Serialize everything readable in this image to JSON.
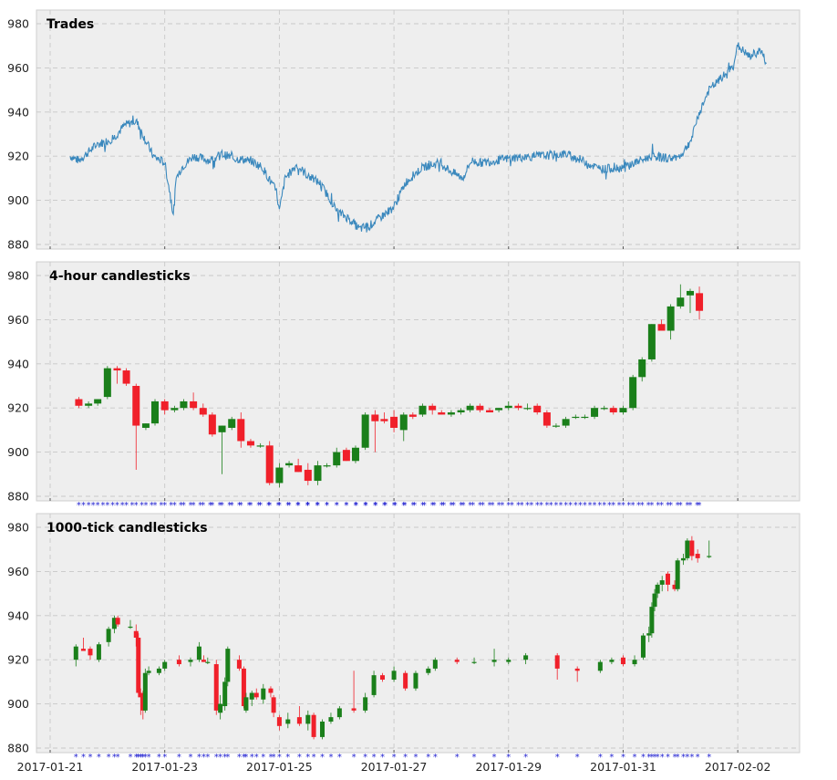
{
  "colors": {
    "trade_line": "#3a88bd",
    "up": "#1a7f1a",
    "down": "#f0202a",
    "marker": "#1f1fd0",
    "grid": "#c8c8c8",
    "panel_bg": "#eeeeee"
  },
  "x_axis": {
    "tick_labels": [
      "2017-01-21",
      "2017-01-23",
      "2017-01-25",
      "2017-01-27",
      "2017-01-29",
      "2017-01-31",
      "2017-02-02"
    ]
  },
  "chart_data": [
    {
      "type": "line",
      "title": "Trades",
      "ylim": [
        880,
        980
      ],
      "yticks": [
        "880",
        "900",
        "920",
        "940",
        "960",
        "980"
      ],
      "x_range_days": [
        0.0,
        13.0
      ],
      "x": [
        0.35,
        0.5,
        0.8,
        1.1,
        1.3,
        1.5,
        1.8,
        2.0,
        2.08,
        2.15,
        2.2,
        2.3,
        2.5,
        2.8,
        3.0,
        3.2,
        3.5,
        3.7,
        3.95,
        4.0,
        4.1,
        4.3,
        4.5,
        4.7,
        4.9,
        5.0,
        5.2,
        5.4,
        5.6,
        5.8,
        6.0,
        6.2,
        6.5,
        6.8,
        7.0,
        7.2,
        7.35,
        7.5,
        7.8,
        8.0,
        8.5,
        9.0,
        9.3,
        9.6,
        10.0,
        10.3,
        10.5,
        10.8,
        11.0,
        11.2,
        11.3,
        11.5,
        11.7,
        11.9,
        12.0,
        12.2,
        12.4,
        12.5
      ],
      "y": [
        920,
        918,
        925,
        928,
        934,
        936,
        920,
        917,
        905,
        893,
        910,
        915,
        920,
        918,
        921,
        919,
        918,
        915,
        904,
        895,
        910,
        916,
        911,
        908,
        900,
        895,
        892,
        887,
        889,
        893,
        897,
        908,
        915,
        917,
        913,
        910,
        918,
        917,
        918,
        919,
        920,
        921,
        918,
        914,
        915,
        918,
        920,
        919,
        920,
        928,
        938,
        950,
        955,
        960,
        970,
        965,
        968,
        962
      ]
    },
    {
      "type": "candlestick",
      "title": "4-hour candlesticks",
      "ylim": [
        880,
        980
      ],
      "yticks": [
        "880",
        "900",
        "920",
        "940",
        "960",
        "980"
      ],
      "candles": [
        {
          "t": 0.5,
          "o": 924,
          "h": 925,
          "l": 920,
          "c": 921
        },
        {
          "t": 0.67,
          "o": 921,
          "h": 923,
          "l": 920,
          "c": 922
        },
        {
          "t": 0.83,
          "o": 922,
          "h": 924,
          "l": 921,
          "c": 924
        },
        {
          "t": 1.0,
          "o": 925,
          "h": 939,
          "l": 924,
          "c": 938
        },
        {
          "t": 1.17,
          "o": 938,
          "h": 939,
          "l": 931,
          "c": 937
        },
        {
          "t": 1.33,
          "o": 937,
          "h": 938,
          "l": 930,
          "c": 931
        },
        {
          "t": 1.5,
          "o": 930,
          "h": 931,
          "l": 892,
          "c": 912
        },
        {
          "t": 1.67,
          "o": 911,
          "h": 913,
          "l": 910,
          "c": 913
        },
        {
          "t": 1.83,
          "o": 913,
          "h": 924,
          "l": 912,
          "c": 923
        },
        {
          "t": 2.0,
          "o": 923,
          "h": 924,
          "l": 917,
          "c": 919
        },
        {
          "t": 2.17,
          "o": 919,
          "h": 921,
          "l": 918,
          "c": 920
        },
        {
          "t": 2.33,
          "o": 920,
          "h": 924,
          "l": 919,
          "c": 923
        },
        {
          "t": 2.5,
          "o": 923,
          "h": 927,
          "l": 919,
          "c": 920
        },
        {
          "t": 2.67,
          "o": 920,
          "h": 922,
          "l": 916,
          "c": 917
        },
        {
          "t": 2.83,
          "o": 917,
          "h": 918,
          "l": 907,
          "c": 908
        },
        {
          "t": 3.0,
          "o": 909,
          "h": 912,
          "l": 890,
          "c": 912
        },
        {
          "t": 3.17,
          "o": 911,
          "h": 916,
          "l": 910,
          "c": 915
        },
        {
          "t": 3.33,
          "o": 915,
          "h": 918,
          "l": 902,
          "c": 905
        },
        {
          "t": 3.5,
          "o": 905,
          "h": 906,
          "l": 902,
          "c": 903
        },
        {
          "t": 3.67,
          "o": 903,
          "h": 904,
          "l": 902,
          "c": 903
        },
        {
          "t": 3.83,
          "o": 903,
          "h": 905,
          "l": 885,
          "c": 886
        },
        {
          "t": 4.0,
          "o": 886,
          "h": 895,
          "l": 884,
          "c": 893
        },
        {
          "t": 4.17,
          "o": 894,
          "h": 896,
          "l": 893,
          "c": 895
        },
        {
          "t": 4.33,
          "o": 894,
          "h": 897,
          "l": 891,
          "c": 891
        },
        {
          "t": 4.5,
          "o": 892,
          "h": 895,
          "l": 885,
          "c": 887
        },
        {
          "t": 4.67,
          "o": 887,
          "h": 896,
          "l": 885,
          "c": 894
        },
        {
          "t": 4.83,
          "o": 894,
          "h": 895,
          "l": 893,
          "c": 894
        },
        {
          "t": 5.0,
          "o": 894,
          "h": 902,
          "l": 893,
          "c": 900
        },
        {
          "t": 5.17,
          "o": 901,
          "h": 902,
          "l": 896,
          "c": 896
        },
        {
          "t": 5.33,
          "o": 896,
          "h": 903,
          "l": 895,
          "c": 902
        },
        {
          "t": 5.5,
          "o": 902,
          "h": 918,
          "l": 901,
          "c": 917
        },
        {
          "t": 5.67,
          "o": 917,
          "h": 919,
          "l": 900,
          "c": 914
        },
        {
          "t": 5.83,
          "o": 915,
          "h": 918,
          "l": 913,
          "c": 914
        },
        {
          "t": 6.0,
          "o": 916,
          "h": 919,
          "l": 909,
          "c": 911
        },
        {
          "t": 6.17,
          "o": 910,
          "h": 918,
          "l": 905,
          "c": 917
        },
        {
          "t": 6.33,
          "o": 917,
          "h": 918,
          "l": 915,
          "c": 916
        },
        {
          "t": 6.5,
          "o": 917,
          "h": 922,
          "l": 916,
          "c": 921
        },
        {
          "t": 6.67,
          "o": 921,
          "h": 922,
          "l": 917,
          "c": 919
        },
        {
          "t": 6.83,
          "o": 918,
          "h": 919,
          "l": 917,
          "c": 917
        },
        {
          "t": 7.0,
          "o": 917,
          "h": 919,
          "l": 916,
          "c": 918
        },
        {
          "t": 7.17,
          "o": 918,
          "h": 920,
          "l": 917,
          "c": 919
        },
        {
          "t": 7.33,
          "o": 919,
          "h": 922,
          "l": 918,
          "c": 921
        },
        {
          "t": 7.5,
          "o": 921,
          "h": 922,
          "l": 918,
          "c": 919
        },
        {
          "t": 7.67,
          "o": 919,
          "h": 920,
          "l": 918,
          "c": 918
        },
        {
          "t": 7.83,
          "o": 919,
          "h": 920,
          "l": 918,
          "c": 920
        },
        {
          "t": 8.0,
          "o": 920,
          "h": 923,
          "l": 919,
          "c": 921
        },
        {
          "t": 8.17,
          "o": 921,
          "h": 922,
          "l": 919,
          "c": 920
        },
        {
          "t": 8.33,
          "o": 920,
          "h": 922,
          "l": 919,
          "c": 920
        },
        {
          "t": 8.5,
          "o": 921,
          "h": 922,
          "l": 917,
          "c": 918
        },
        {
          "t": 8.67,
          "o": 918,
          "h": 919,
          "l": 911,
          "c": 912
        },
        {
          "t": 8.83,
          "o": 912,
          "h": 913,
          "l": 911,
          "c": 912
        },
        {
          "t": 9.0,
          "o": 912,
          "h": 916,
          "l": 911,
          "c": 915
        },
        {
          "t": 9.17,
          "o": 916,
          "h": 917,
          "l": 915,
          "c": 916
        },
        {
          "t": 9.33,
          "o": 916,
          "h": 917,
          "l": 915,
          "c": 916
        },
        {
          "t": 9.5,
          "o": 916,
          "h": 921,
          "l": 915,
          "c": 920
        },
        {
          "t": 9.67,
          "o": 920,
          "h": 921,
          "l": 919,
          "c": 920
        },
        {
          "t": 9.83,
          "o": 920,
          "h": 921,
          "l": 917,
          "c": 918
        },
        {
          "t": 10.0,
          "o": 918,
          "h": 921,
          "l": 917,
          "c": 920
        },
        {
          "t": 10.17,
          "o": 920,
          "h": 935,
          "l": 919,
          "c": 934
        },
        {
          "t": 10.33,
          "o": 934,
          "h": 943,
          "l": 932,
          "c": 942
        },
        {
          "t": 10.5,
          "o": 942,
          "h": 958,
          "l": 941,
          "c": 958
        },
        {
          "t": 10.67,
          "o": 958,
          "h": 960,
          "l": 955,
          "c": 955
        },
        {
          "t": 10.83,
          "o": 955,
          "h": 967,
          "l": 951,
          "c": 966
        },
        {
          "t": 11.0,
          "o": 966,
          "h": 976,
          "l": 965,
          "c": 970
        },
        {
          "t": 11.17,
          "o": 971,
          "h": 974,
          "l": 963,
          "c": 973
        },
        {
          "t": 11.33,
          "o": 972,
          "h": 975,
          "l": 960,
          "c": 964
        }
      ]
    },
    {
      "type": "candlestick",
      "title": "1000-tick candlesticks",
      "ylim": [
        880,
        980
      ],
      "yticks": [
        "880",
        "900",
        "920",
        "940",
        "960",
        "980"
      ],
      "candles": [
        {
          "t": 0.45,
          "o": 920,
          "h": 927,
          "l": 917,
          "c": 926
        },
        {
          "t": 0.58,
          "o": 925,
          "h": 930,
          "l": 924,
          "c": 924
        },
        {
          "t": 0.7,
          "o": 925,
          "h": 926,
          "l": 920,
          "c": 922
        },
        {
          "t": 0.85,
          "o": 920,
          "h": 928,
          "l": 919,
          "c": 927
        },
        {
          "t": 1.02,
          "o": 928,
          "h": 935,
          "l": 926,
          "c": 934
        },
        {
          "t": 1.12,
          "o": 934,
          "h": 940,
          "l": 932,
          "c": 939
        },
        {
          "t": 1.18,
          "o": 939,
          "h": 940,
          "l": 935,
          "c": 936
        },
        {
          "t": 1.4,
          "o": 935,
          "h": 938,
          "l": 934,
          "c": 935
        },
        {
          "t": 1.5,
          "o": 933,
          "h": 936,
          "l": 926,
          "c": 930
        },
        {
          "t": 1.54,
          "o": 930,
          "h": 932,
          "l": 903,
          "c": 905
        },
        {
          "t": 1.58,
          "o": 905,
          "h": 907,
          "l": 895,
          "c": 903
        },
        {
          "t": 1.62,
          "o": 905,
          "h": 906,
          "l": 893,
          "c": 897
        },
        {
          "t": 1.66,
          "o": 897,
          "h": 916,
          "l": 896,
          "c": 914
        },
        {
          "t": 1.72,
          "o": 914,
          "h": 917,
          "l": 913,
          "c": 915
        },
        {
          "t": 1.9,
          "o": 914,
          "h": 917,
          "l": 913,
          "c": 916
        },
        {
          "t": 2.0,
          "o": 916,
          "h": 920,
          "l": 915,
          "c": 919
        },
        {
          "t": 2.25,
          "o": 920,
          "h": 922,
          "l": 917,
          "c": 918
        },
        {
          "t": 2.45,
          "o": 919,
          "h": 921,
          "l": 917,
          "c": 920
        },
        {
          "t": 2.6,
          "o": 920,
          "h": 928,
          "l": 919,
          "c": 926
        },
        {
          "t": 2.68,
          "o": 920,
          "h": 922,
          "l": 919,
          "c": 919
        },
        {
          "t": 2.75,
          "o": 919,
          "h": 921,
          "l": 918,
          "c": 919
        },
        {
          "t": 2.9,
          "o": 918,
          "h": 920,
          "l": 895,
          "c": 897
        },
        {
          "t": 2.97,
          "o": 896,
          "h": 904,
          "l": 893,
          "c": 900
        },
        {
          "t": 3.05,
          "o": 899,
          "h": 912,
          "l": 897,
          "c": 910
        },
        {
          "t": 3.1,
          "o": 910,
          "h": 926,
          "l": 908,
          "c": 925
        },
        {
          "t": 3.3,
          "o": 920,
          "h": 922,
          "l": 915,
          "c": 916
        },
        {
          "t": 3.38,
          "o": 916,
          "h": 917,
          "l": 898,
          "c": 899
        },
        {
          "t": 3.42,
          "o": 897,
          "h": 905,
          "l": 896,
          "c": 903
        },
        {
          "t": 3.52,
          "o": 902,
          "h": 906,
          "l": 899,
          "c": 905
        },
        {
          "t": 3.6,
          "o": 905,
          "h": 907,
          "l": 902,
          "c": 903
        },
        {
          "t": 3.72,
          "o": 902,
          "h": 909,
          "l": 900,
          "c": 907
        },
        {
          "t": 3.85,
          "o": 907,
          "h": 908,
          "l": 903,
          "c": 905
        },
        {
          "t": 3.9,
          "o": 903,
          "h": 904,
          "l": 894,
          "c": 896
        },
        {
          "t": 4.0,
          "o": 894,
          "h": 895,
          "l": 888,
          "c": 890
        },
        {
          "t": 4.15,
          "o": 891,
          "h": 896,
          "l": 889,
          "c": 893
        },
        {
          "t": 4.35,
          "o": 894,
          "h": 899,
          "l": 890,
          "c": 891
        },
        {
          "t": 4.5,
          "o": 891,
          "h": 897,
          "l": 888,
          "c": 895
        },
        {
          "t": 4.6,
          "o": 895,
          "h": 896,
          "l": 884,
          "c": 885
        },
        {
          "t": 4.75,
          "o": 885,
          "h": 893,
          "l": 884,
          "c": 892
        },
        {
          "t": 4.9,
          "o": 892,
          "h": 896,
          "l": 891,
          "c": 894
        },
        {
          "t": 5.05,
          "o": 894,
          "h": 899,
          "l": 893,
          "c": 898
        },
        {
          "t": 5.3,
          "o": 898,
          "h": 915,
          "l": 896,
          "c": 897
        },
        {
          "t": 5.5,
          "o": 897,
          "h": 905,
          "l": 896,
          "c": 903
        },
        {
          "t": 5.65,
          "o": 904,
          "h": 915,
          "l": 903,
          "c": 913
        },
        {
          "t": 5.8,
          "o": 913,
          "h": 914,
          "l": 910,
          "c": 911
        },
        {
          "t": 6.0,
          "o": 911,
          "h": 917,
          "l": 910,
          "c": 915
        },
        {
          "t": 6.2,
          "o": 914,
          "h": 915,
          "l": 906,
          "c": 907
        },
        {
          "t": 6.38,
          "o": 907,
          "h": 915,
          "l": 906,
          "c": 914
        },
        {
          "t": 6.6,
          "o": 914,
          "h": 917,
          "l": 913,
          "c": 916
        },
        {
          "t": 6.72,
          "o": 916,
          "h": 921,
          "l": 915,
          "c": 920
        },
        {
          "t": 7.1,
          "o": 920,
          "h": 921,
          "l": 918,
          "c": 919
        },
        {
          "t": 7.4,
          "o": 919,
          "h": 921,
          "l": 918,
          "c": 919
        },
        {
          "t": 7.75,
          "o": 919,
          "h": 925,
          "l": 917,
          "c": 920
        },
        {
          "t": 8.0,
          "o": 919,
          "h": 921,
          "l": 918,
          "c": 920
        },
        {
          "t": 8.3,
          "o": 920,
          "h": 923,
          "l": 918,
          "c": 922
        },
        {
          "t": 8.85,
          "o": 922,
          "h": 923,
          "l": 911,
          "c": 916
        },
        {
          "t": 9.2,
          "o": 916,
          "h": 917,
          "l": 910,
          "c": 915
        },
        {
          "t": 9.6,
          "o": 915,
          "h": 920,
          "l": 914,
          "c": 919
        },
        {
          "t": 9.8,
          "o": 919,
          "h": 921,
          "l": 918,
          "c": 920
        },
        {
          "t": 10.0,
          "o": 921,
          "h": 922,
          "l": 917,
          "c": 918
        },
        {
          "t": 10.2,
          "o": 918,
          "h": 922,
          "l": 917,
          "c": 920
        },
        {
          "t": 10.35,
          "o": 921,
          "h": 932,
          "l": 920,
          "c": 931
        },
        {
          "t": 10.45,
          "o": 931,
          "h": 935,
          "l": 928,
          "c": 932
        },
        {
          "t": 10.5,
          "o": 932,
          "h": 946,
          "l": 930,
          "c": 944
        },
        {
          "t": 10.55,
          "o": 944,
          "h": 952,
          "l": 942,
          "c": 950
        },
        {
          "t": 10.6,
          "o": 950,
          "h": 955,
          "l": 948,
          "c": 954
        },
        {
          "t": 10.68,
          "o": 954,
          "h": 958,
          "l": 951,
          "c": 956
        },
        {
          "t": 10.78,
          "o": 959,
          "h": 960,
          "l": 951,
          "c": 954
        },
        {
          "t": 10.9,
          "o": 954,
          "h": 956,
          "l": 951,
          "c": 952
        },
        {
          "t": 10.95,
          "o": 952,
          "h": 966,
          "l": 951,
          "c": 965
        },
        {
          "t": 11.05,
          "o": 965,
          "h": 968,
          "l": 963,
          "c": 966
        },
        {
          "t": 11.12,
          "o": 966,
          "h": 975,
          "l": 965,
          "c": 974
        },
        {
          "t": 11.2,
          "o": 974,
          "h": 976,
          "l": 965,
          "c": 967
        },
        {
          "t": 11.3,
          "o": 968,
          "h": 970,
          "l": 964,
          "c": 966
        },
        {
          "t": 11.5,
          "o": 967,
          "h": 974,
          "l": 966,
          "c": 967
        }
      ]
    }
  ]
}
